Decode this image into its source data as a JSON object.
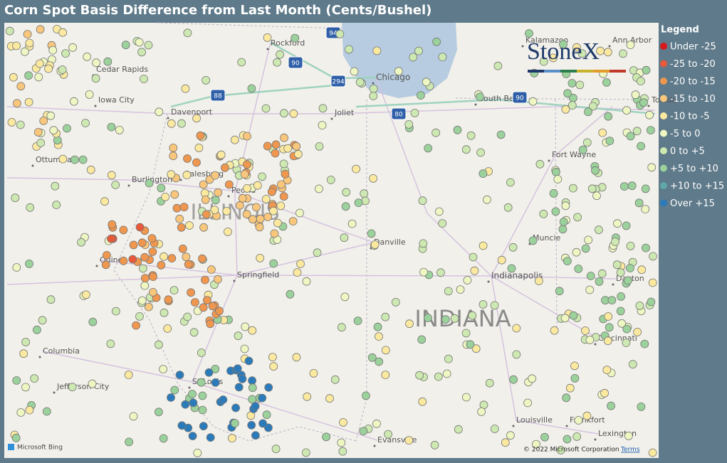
{
  "title": "Corn Spot Basis Difference from Last Month (Cents/Bushel)",
  "legend": {
    "title": "Legend",
    "items": [
      {
        "label": "Under -25",
        "color": "#d7191c"
      },
      {
        "label": "-25 to -20",
        "color": "#e8593a"
      },
      {
        "label": "-20 to -15",
        "color": "#f0974f"
      },
      {
        "label": "-15 to -10",
        "color": "#f9c77c"
      },
      {
        "label": "-10 to -5",
        "color": "#fbe9a0"
      },
      {
        "label": "-5 to 0",
        "color": "#eef6c2"
      },
      {
        "label": "0 to +5",
        "color": "#cde9b1"
      },
      {
        "label": "+5 to +10",
        "color": "#9bd19b"
      },
      {
        "label": "+10 to +15",
        "color": "#5fa8a8"
      },
      {
        "label": "Over +15",
        "color": "#2b7bba"
      }
    ]
  },
  "logo": "StoneX",
  "map": {
    "states": [
      "ILLINOIS",
      "INDIANA"
    ],
    "cities": [
      "Rockford",
      "Chicago",
      "Joliet",
      "Davenport",
      "Cedar Rapids",
      "Iowa City",
      "Ottumwa",
      "Burlington",
      "Galesburg",
      "Peoria",
      "Quincy",
      "Springfield",
      "Danville",
      "Indianapolis",
      "Muncie",
      "Fort Wayne",
      "South Bend",
      "Kalamazoo",
      "Ann Arbor",
      "Dayton",
      "Cincinnati",
      "Columbia",
      "Jefferson City",
      "St Louis",
      "Evansville",
      "Louisville",
      "Frankfort",
      "Lexington",
      "Toledo"
    ],
    "shields": [
      "94",
      "90",
      "294",
      "88",
      "80",
      "90"
    ],
    "attribution": {
      "provider": "Microsoft Bing",
      "copyright": "© 2022 Microsoft Corporation",
      "terms": "Terms"
    }
  }
}
